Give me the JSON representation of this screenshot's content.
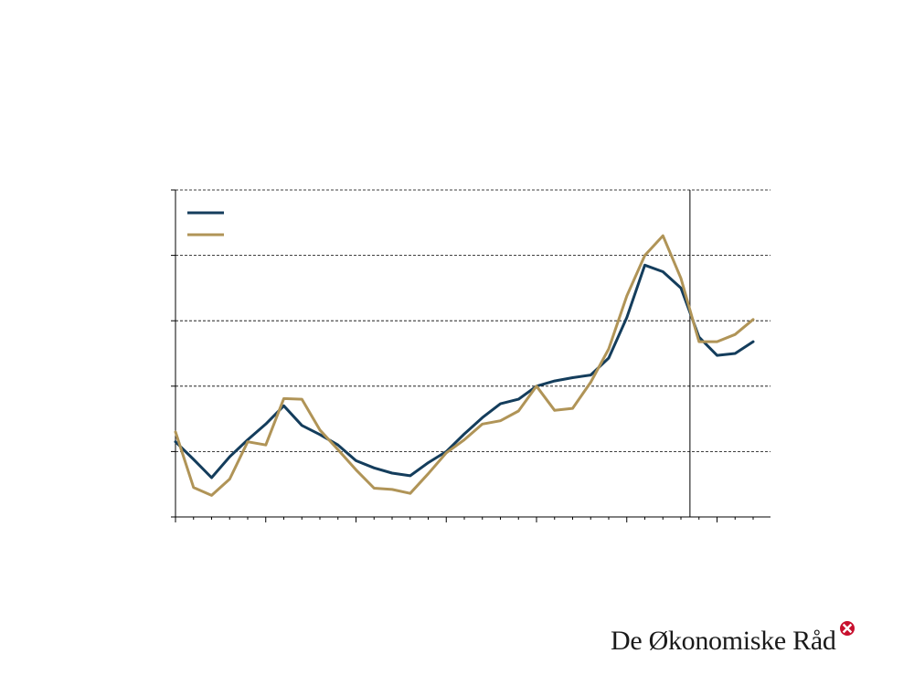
{
  "chart_data": {
    "type": "line",
    "title": "",
    "xlabel": "",
    "ylabel": "",
    "x_count": 33,
    "forecast_start_index": 29,
    "ylim": [
      0,
      5
    ],
    "grid": "horizontal dashed",
    "legend": "top-left",
    "series": [
      {
        "color": "#143d5c",
        "values": [
          1.15,
          0.88,
          0.6,
          0.92,
          1.18,
          1.42,
          1.7,
          1.4,
          1.26,
          1.1,
          0.86,
          0.75,
          0.67,
          0.63,
          0.83,
          1.0,
          1.27,
          1.52,
          1.73,
          1.8,
          2.0,
          2.08,
          2.13,
          2.17,
          2.43,
          3.05,
          3.85,
          3.75,
          3.5,
          2.75,
          2.47,
          2.5,
          2.68
        ]
      },
      {
        "color": "#b09457",
        "values": [
          1.3,
          0.45,
          0.33,
          0.58,
          1.15,
          1.1,
          1.81,
          1.8,
          1.33,
          1.03,
          0.72,
          0.44,
          0.42,
          0.36,
          0.66,
          0.98,
          1.18,
          1.42,
          1.47,
          1.62,
          2.0,
          1.63,
          1.66,
          2.06,
          2.57,
          3.38,
          4.0,
          4.3,
          3.65,
          2.68,
          2.68,
          2.79,
          3.02
        ]
      }
    ]
  },
  "brand": {
    "name": "De Økonomiske Råd",
    "logo_icon": "red-circle-x-logo-icon",
    "logo_color": "#c8102e"
  }
}
